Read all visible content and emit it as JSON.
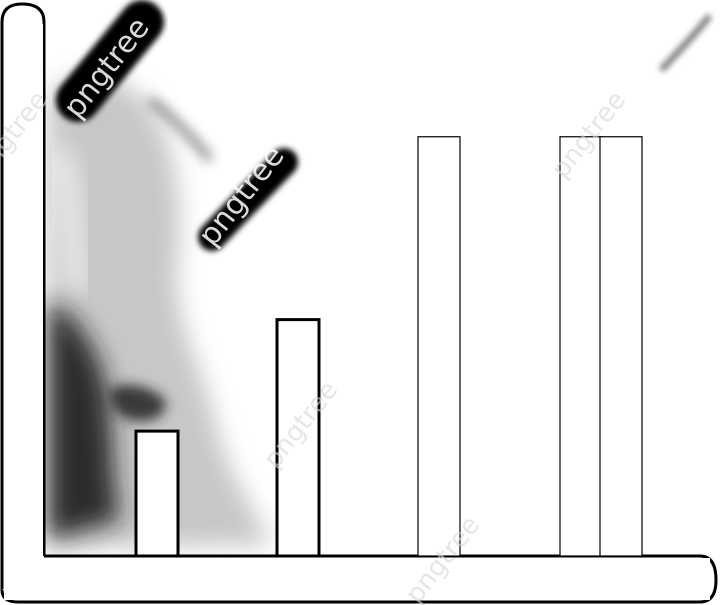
{
  "chart_data": {
    "type": "bar",
    "categories": [
      "",
      "",
      "",
      "",
      ""
    ],
    "values": [
      0.28,
      0.53,
      0.94,
      0.94,
      0.94
    ],
    "title": "",
    "xlabel": "",
    "ylabel": "",
    "ylim": [
      0,
      1
    ],
    "grid": false,
    "legend": "none"
  },
  "icon": {
    "name": "bar-chart-icon",
    "outline_color": "#000000",
    "fill_color": "#ffffff",
    "smudge_color": "#000000"
  },
  "watermark": {
    "brand": "pngtree"
  }
}
